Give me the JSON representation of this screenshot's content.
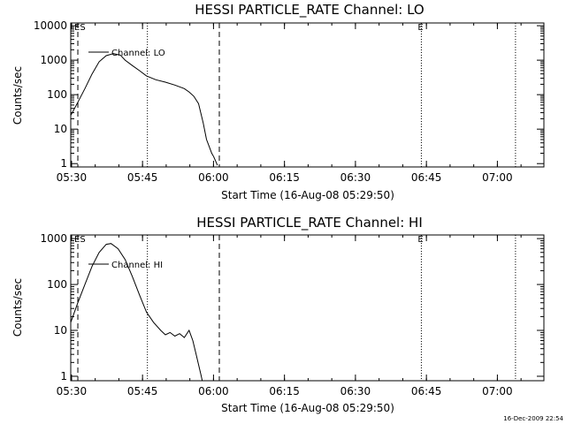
{
  "footer": {
    "timestamp": "16-Dec-2009 22:54"
  },
  "chart_data": [
    {
      "type": "line",
      "title": "HESSI PARTICLE_RATE Channel: LO",
      "xlabel": "Start Time (16-Aug-08 05:29:50)",
      "ylabel": "Counts/sec",
      "x_unit": "minutes after 05:29:50",
      "xlim": [
        0,
        100
      ],
      "x_ticks": [
        {
          "value": 0.17,
          "label": "05:30"
        },
        {
          "value": 15.17,
          "label": "05:45"
        },
        {
          "value": 30.17,
          "label": "06:00"
        },
        {
          "value": 45.17,
          "label": "06:15"
        },
        {
          "value": 60.17,
          "label": "06:30"
        },
        {
          "value": 75.17,
          "label": "06:45"
        },
        {
          "value": 90.17,
          "label": "07:00"
        }
      ],
      "y_scale": "log",
      "ylim": [
        0.8,
        12000
      ],
      "y_ticks": [
        {
          "value": 1,
          "label": "1"
        },
        {
          "value": 10,
          "label": "10"
        },
        {
          "value": 100,
          "label": "100"
        },
        {
          "value": 1000,
          "label": "1000"
        },
        {
          "value": 10000,
          "label": "10000"
        }
      ],
      "legend": {
        "label": "Channel: LO",
        "placement": "top-left"
      },
      "event_markers": [
        {
          "x": 1.5,
          "style": "dashed",
          "label": "ES"
        },
        {
          "x": 16.2,
          "style": "dotted",
          "label": ""
        },
        {
          "x": 31.4,
          "style": "dashed",
          "label": ""
        },
        {
          "x": 74.1,
          "style": "dotted",
          "label": "E"
        },
        {
          "x": 94.0,
          "style": "dotted",
          "label": ""
        }
      ],
      "series": [
        {
          "name": "Channel: LO",
          "x": [
            0,
            1.5,
            3,
            4.5,
            6,
            7.5,
            9,
            10.5,
            11.5,
            13,
            14.5,
            16,
            18,
            20,
            22,
            24,
            25,
            26,
            27,
            28,
            28.7,
            29.3,
            29.8,
            30.2,
            30.6,
            31
          ],
          "y": [
            25,
            60,
            150,
            400,
            900,
            1350,
            1550,
            1400,
            1000,
            700,
            500,
            350,
            270,
            230,
            190,
            150,
            120,
            90,
            55,
            15,
            5,
            3,
            2,
            1.6,
            1.2,
            0.9
          ]
        }
      ]
    },
    {
      "type": "line",
      "title": "HESSI PARTICLE_RATE Channel: HI",
      "xlabel": "Start Time (16-Aug-08 05:29:50)",
      "ylabel": "Counts/sec",
      "x_unit": "minutes after 05:29:50",
      "xlim": [
        0,
        100
      ],
      "x_ticks": [
        {
          "value": 0.17,
          "label": "05:30"
        },
        {
          "value": 15.17,
          "label": "05:45"
        },
        {
          "value": 30.17,
          "label": "06:00"
        },
        {
          "value": 45.17,
          "label": "06:15"
        },
        {
          "value": 60.17,
          "label": "06:30"
        },
        {
          "value": 75.17,
          "label": "06:45"
        },
        {
          "value": 90.17,
          "label": "07:00"
        }
      ],
      "y_scale": "log",
      "ylim": [
        0.8,
        1200
      ],
      "y_ticks": [
        {
          "value": 1,
          "label": "1"
        },
        {
          "value": 10,
          "label": "10"
        },
        {
          "value": 100,
          "label": "100"
        },
        {
          "value": 1000,
          "label": "1000"
        }
      ],
      "legend": {
        "label": "Channel: HI",
        "placement": "top-left"
      },
      "event_markers": [
        {
          "x": 1.5,
          "style": "dashed",
          "label": "ES"
        },
        {
          "x": 16.2,
          "style": "dotted",
          "label": ""
        },
        {
          "x": 31.4,
          "style": "dashed",
          "label": ""
        },
        {
          "x": 74.1,
          "style": "dotted",
          "label": "E"
        },
        {
          "x": 94.0,
          "style": "dotted",
          "label": ""
        }
      ],
      "series": [
        {
          "name": "Channel: HI",
          "x": [
            0,
            1.5,
            3,
            4.5,
            6,
            7.5,
            8.5,
            10,
            11.5,
            13,
            14.5,
            16,
            17.5,
            19,
            20,
            21,
            22,
            23,
            24,
            25,
            25.8,
            26.5,
            27,
            27.5,
            27.8
          ],
          "y": [
            15,
            40,
            100,
            250,
            500,
            750,
            780,
            600,
            350,
            150,
            60,
            25,
            15,
            10,
            8,
            9,
            7.5,
            8.5,
            7,
            10,
            6,
            3,
            1.8,
            1.1,
            0.8
          ]
        }
      ]
    }
  ]
}
